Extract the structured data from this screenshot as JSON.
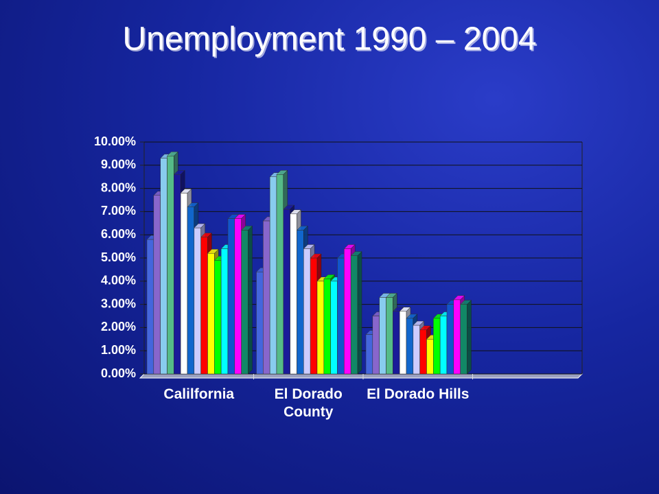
{
  "chart_data": {
    "type": "bar",
    "title": "Unemployment 1990 – 2004",
    "categories": [
      "Calilfornia",
      "El Dorado County",
      "El Dorado Hills",
      null
    ],
    "series": [
      {
        "color": "#4466dd",
        "values": [
          5.8,
          4.4,
          1.7,
          null
        ]
      },
      {
        "color": "#8866cc",
        "values": [
          7.7,
          6.6,
          2.5,
          null
        ]
      },
      {
        "color": "#88ccee",
        "values": [
          9.3,
          8.5,
          3.3,
          null
        ]
      },
      {
        "color": "#55bb88",
        "values": [
          9.4,
          8.6,
          3.3,
          null
        ]
      },
      {
        "color": "#1a1a99",
        "values": [
          8.6,
          7.1,
          2.7,
          null
        ]
      },
      {
        "color": "#ffffff",
        "values": [
          7.8,
          6.9,
          2.7,
          null
        ]
      },
      {
        "color": "#1166cc",
        "values": [
          7.2,
          6.2,
          2.4,
          null
        ]
      },
      {
        "color": "#ccccff",
        "values": [
          6.3,
          5.4,
          2.1,
          null
        ]
      },
      {
        "color": "#ff0000",
        "values": [
          5.9,
          5.0,
          1.9,
          null
        ]
      },
      {
        "color": "#ffff00",
        "values": [
          5.2,
          4.0,
          1.5,
          null
        ]
      },
      {
        "color": "#00ff00",
        "values": [
          4.9,
          4.1,
          2.4,
          null
        ]
      },
      {
        "color": "#00ffff",
        "values": [
          5.4,
          4.0,
          2.5,
          null
        ]
      },
      {
        "color": "#1155cc",
        "values": [
          6.7,
          5.0,
          3.0,
          null
        ]
      },
      {
        "color": "#ff00ff",
        "values": [
          6.7,
          5.4,
          3.2,
          null
        ]
      },
      {
        "color": "#118866",
        "values": [
          6.2,
          5.1,
          3.0,
          null
        ]
      }
    ],
    "ylim": [
      0,
      10
    ],
    "yticks": [
      {
        "value": 0,
        "label": "0.00%"
      },
      {
        "value": 1,
        "label": "1.00%"
      },
      {
        "value": 2,
        "label": "2.00%"
      },
      {
        "value": 3,
        "label": "3.00%"
      },
      {
        "value": 4,
        "label": "4.00%"
      },
      {
        "value": 5,
        "label": "5.00%"
      },
      {
        "value": 6,
        "label": "6.00%"
      },
      {
        "value": 7,
        "label": "7.00%"
      },
      {
        "value": 8,
        "label": "8.00%"
      },
      {
        "value": 9,
        "label": "9.00%"
      },
      {
        "value": 10,
        "label": "10.00%"
      }
    ],
    "grid": true
  }
}
